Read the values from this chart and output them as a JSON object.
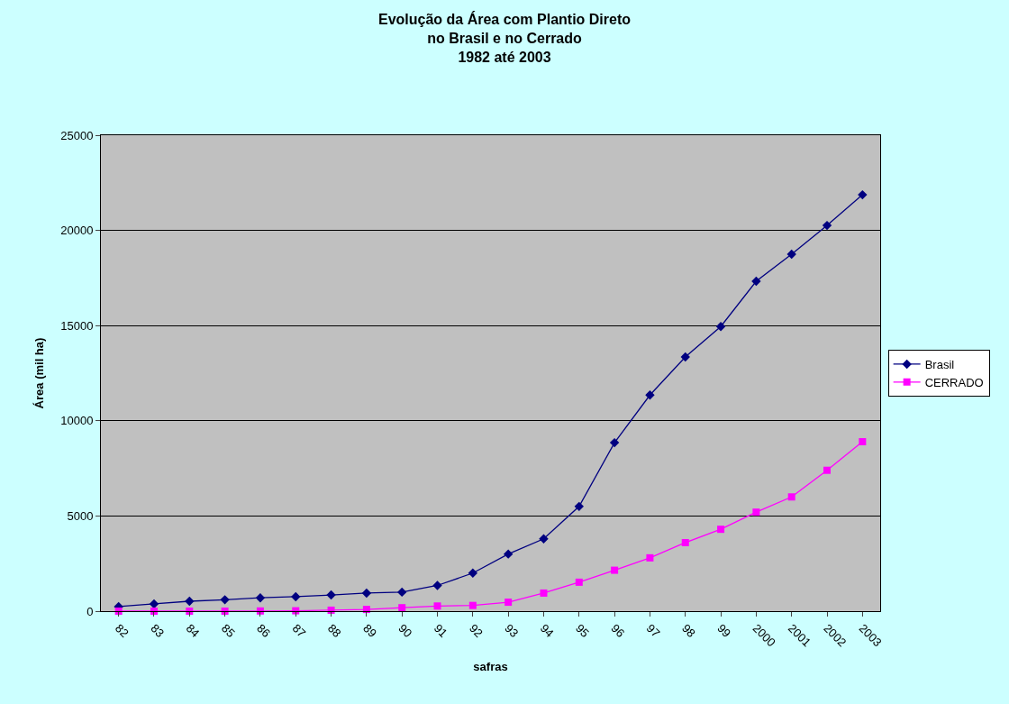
{
  "chart_data": {
    "type": "line",
    "title": "Evolução da Área com Plantio Direto\nno Brasil e no Cerrado\n1982 até 2003",
    "xlabel": "safras",
    "ylabel": "Área (mil ha)",
    "categories": [
      "82",
      "83",
      "84",
      "85",
      "86",
      "87",
      "88",
      "89",
      "90",
      "91",
      "92",
      "93",
      "94",
      "95",
      "96",
      "97",
      "98",
      "99",
      "2000",
      "2001",
      "2002",
      "2003"
    ],
    "series": [
      {
        "name": "Brasil",
        "color": "#000080",
        "marker": "diamond",
        "values": [
          240,
          380,
          520,
          600,
          700,
          760,
          850,
          950,
          1000,
          1350,
          2000,
          3000,
          3800,
          5500,
          8850,
          11350,
          13350,
          14950,
          17330,
          18750,
          20260,
          21870
        ]
      },
      {
        "name": "CERRADO",
        "color": "#ff00ff",
        "marker": "square",
        "values": [
          0,
          0,
          0,
          0,
          10,
          20,
          50,
          90,
          180,
          270,
          300,
          470,
          950,
          1520,
          2150,
          2800,
          3600,
          4300,
          5200,
          6000,
          7400,
          8900
        ]
      }
    ],
    "ylim": [
      0,
      25000
    ],
    "yticks": [
      0,
      5000,
      10000,
      15000,
      20000,
      25000
    ],
    "grid": "y",
    "legend": "right",
    "line_style": "solid"
  }
}
